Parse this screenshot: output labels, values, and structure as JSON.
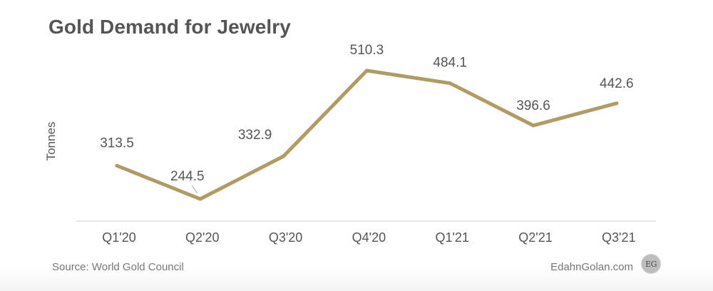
{
  "title": "Gold Demand for Jewelry",
  "footer": {
    "source": "Source: World Gold  Council",
    "site": "EdahnGolan.com",
    "logo_text": "EG"
  },
  "colors": {
    "line": "#b09b63",
    "text": "#555555",
    "axis": "#d3d3d3",
    "footer": "#777777"
  },
  "chart_data": {
    "type": "line",
    "categories": [
      "Q1'20",
      "Q2'20",
      "Q3'20",
      "Q4'20",
      "Q1'21",
      "Q2'21",
      "Q3'21"
    ],
    "series": [
      {
        "values": [
          313.5,
          244.5,
          332.9,
          510.3,
          484.1,
          396.6,
          442.6
        ],
        "labels": [
          "313.5",
          "244.5",
          "332.9",
          "510.3",
          "484.1",
          "396.6",
          "442.6"
        ]
      }
    ],
    "ylabel": "Tonnes",
    "xlabel": "",
    "grid": false,
    "legend": "none"
  }
}
